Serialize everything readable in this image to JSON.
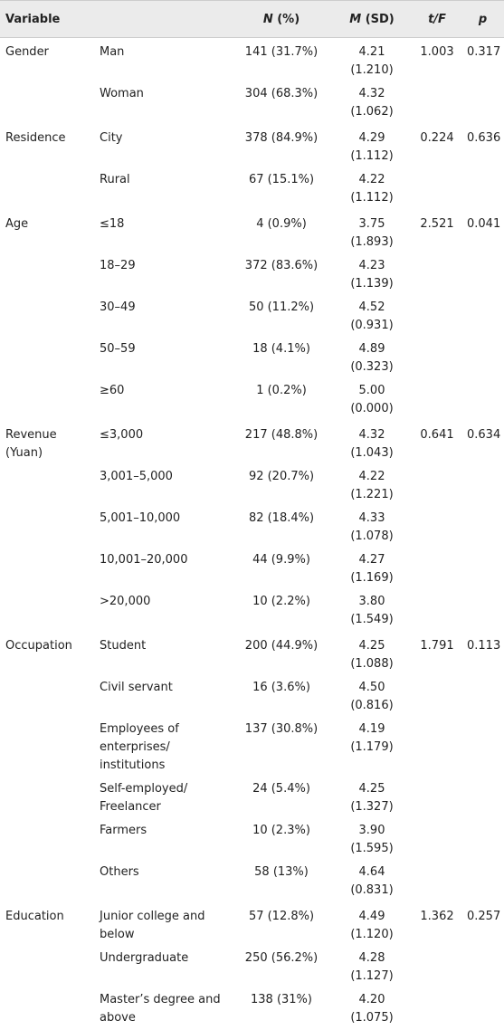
{
  "table": {
    "headers": [
      "Variable",
      "N (%)",
      "M (SD)",
      "t/F",
      "p"
    ],
    "groups": [
      {
        "variable": "Gender",
        "t_f": "1.003",
        "p": "0.317",
        "rows": [
          [
            "Man",
            "141 (31.7%)",
            "4.21 (1.210)"
          ],
          [
            "Woman",
            "304 (68.3%)",
            "4.32 (1.062)"
          ]
        ]
      },
      {
        "variable": "Residence",
        "t_f": "0.224",
        "p": "0.636",
        "rows": [
          [
            "City",
            "378 (84.9%)",
            "4.29 (1.112)"
          ],
          [
            "Rural",
            "67 (15.1%)",
            "4.22 (1.112)"
          ]
        ]
      },
      {
        "variable": "Age",
        "t_f": "2.521",
        "p": "0.041",
        "rows": [
          [
            "≤18",
            "4 (0.9%)",
            "3.75 (1.893)"
          ],
          [
            "18–29",
            "372 (83.6%)",
            "4.23 (1.139)"
          ],
          [
            "30–49",
            "50 (11.2%)",
            "4.52 (0.931)"
          ],
          [
            "50–59",
            "18 (4.1%)",
            "4.89 (0.323)"
          ],
          [
            "≥60",
            "1 (0.2%)",
            "5.00 (0.000)"
          ]
        ]
      },
      {
        "variable": "Revenue (Yuan)",
        "t_f": "0.641",
        "p": "0.634",
        "rows": [
          [
            "≤3,000",
            "217 (48.8%)",
            "4.32 (1.043)"
          ],
          [
            "3,001–5,000",
            "92 (20.7%)",
            "4.22 (1.221)"
          ],
          [
            "5,001–10,000",
            "82 (18.4%)",
            "4.33 (1.078)"
          ],
          [
            "10,001–20,000",
            "44 (9.9%)",
            "4.27 (1.169)"
          ],
          [
            ">20,000",
            "10 (2.2%)",
            "3.80 (1.549)"
          ]
        ]
      },
      {
        "variable": "Occupation",
        "t_f": "1.791",
        "p": "0.113",
        "rows": [
          [
            "Student",
            "200 (44.9%)",
            "4.25 (1.088)"
          ],
          [
            "Civil servant",
            "16 (3.6%)",
            "4.50 (0.816)"
          ],
          [
            "Employees of enterprises/ institutions",
            "137 (30.8%)",
            "4.19 (1.179)"
          ],
          [
            "Self-employed/ Freelancer",
            "24 (5.4%)",
            "4.25 (1.327)"
          ],
          [
            "Farmers",
            "10 (2.3%)",
            "3.90 (1.595)"
          ],
          [
            "Others",
            "58 (13%)",
            "4.64 (0.831)"
          ]
        ]
      },
      {
        "variable": "Education",
        "t_f": "1.362",
        "p": "0.257",
        "rows": [
          [
            "Junior college and below",
            "57 (12.8%)",
            "4.49 (1.120)"
          ],
          [
            "Undergraduate",
            "250 (56.2%)",
            "4.28 (1.127)"
          ],
          [
            "Master’s degree and above",
            "138 (31%)",
            "4.20 (1.075)"
          ]
        ]
      }
    ]
  }
}
